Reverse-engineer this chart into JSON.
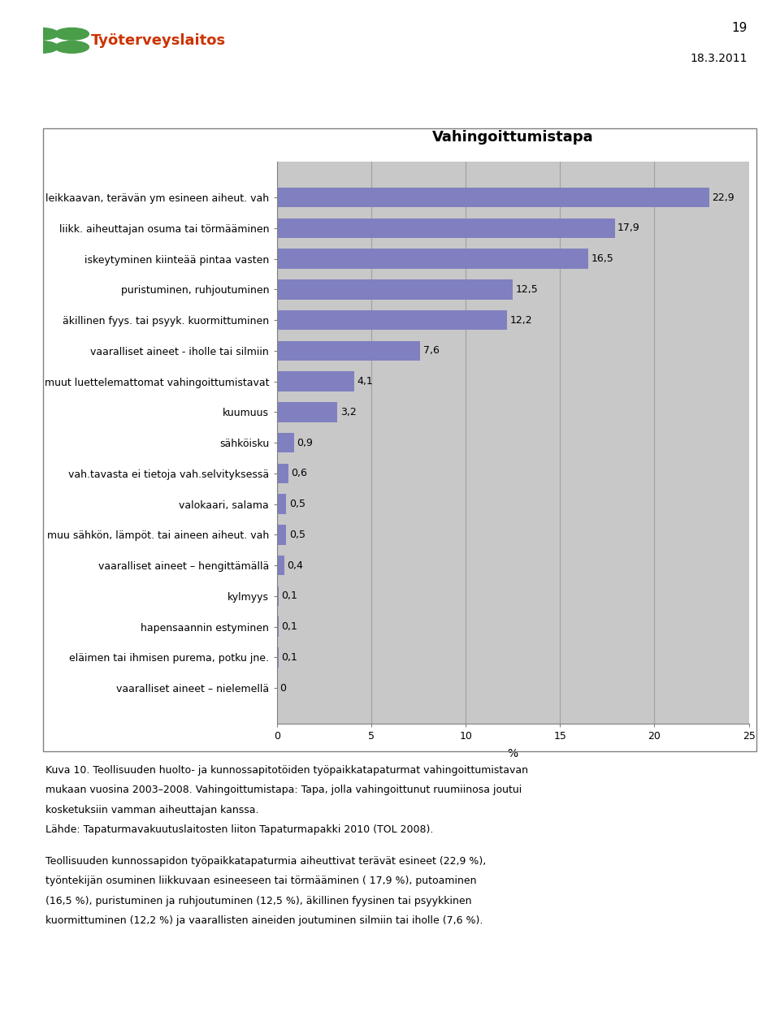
{
  "title": "Vahingoittumistapa",
  "categories": [
    "vaaralliset aineet – nielemellä",
    "eläimen tai ihmisen purema, potku jne.",
    "hapensaannin estyminen",
    "kylmyys",
    "vaaralliset aineet – hengittämällä",
    "muu sähkön, lämpöt. tai aineen aiheut. vah",
    "valokaari, salama",
    "vah.tavasta ei tietoja vah.selvityksessä",
    "sähköisku",
    "kuumuus",
    "muut luettelemattomat vahingoittumistavat",
    "vaaralliset aineet - iholle tai silmiin",
    "äkillinen fyys. tai psyyk. kuormittuminen",
    "puristuminen, ruhjoutuminen",
    "iskeytyminen kiinteää pintaa vasten",
    "liikk. aiheuttajan osuma tai törmääminen",
    "leikkaavan, terävän ym esineen aiheut. vah"
  ],
  "values": [
    0,
    0.1,
    0.1,
    0.1,
    0.4,
    0.5,
    0.5,
    0.6,
    0.9,
    3.2,
    4.1,
    7.6,
    12.2,
    12.5,
    16.5,
    17.9,
    22.9
  ],
  "bar_color": "#8080c0",
  "plot_bg_color": "#c8c8c8",
  "page_bg_color": "#ffffff",
  "grid_color": "#a0a0a0",
  "xlabel": "%",
  "xlim": [
    0,
    25
  ],
  "xticks": [
    0,
    5,
    10,
    15,
    20,
    25
  ],
  "title_fontsize": 13,
  "label_fontsize": 9,
  "value_fontsize": 9,
  "xlabel_fontsize": 10,
  "tick_label_fontsize": 9,
  "text_block1": [
    "Kuva 10. Teollisuuden huolto- ja kunnossapitotöiden työpaikkatapaturmat vahingoittumistavan",
    "mukaan vuosina 2003–2008. Vahingoittumistapa: Tapa, jolla vahingoittunut ruumiinosa joutui",
    "kosketuksiin vamman aiheuttajan kanssa.",
    "Lähde: Tapaturmavakuutuslaitosten liiton Tapaturmapakki 2010 (TOL 2008)."
  ],
  "text_block2": [
    "Teollisuuden kunnossapidon työpaikkatapaturmia aiheuttivat terävät esineet (22,9 %),",
    "työntekijän osuminen liikkuvaan esineeseen tai törmääminen ( 17,9 %), putoaminen",
    "(16,5 %), puristuminen ja ruhjoutuminen (12,5 %), äkillinen fyysinen tai psyykkinen",
    "kuormittuminen (12,2 %) ja vaarallisten aineiden joutuminen silmiin tai iholle (7,6 %)."
  ],
  "header_date": "18.3.2011",
  "header_page": "19",
  "box_border_color": "#808080",
  "spine_color": "#808080"
}
